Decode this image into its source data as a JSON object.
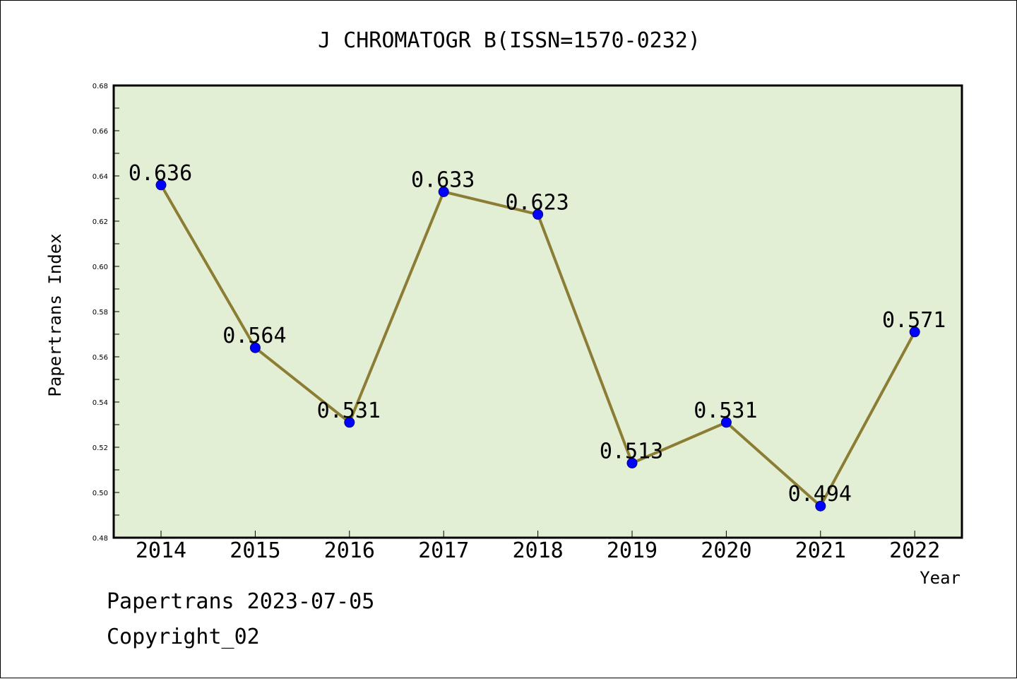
{
  "chart_data": {
    "type": "line",
    "title": "J CHROMATOGR B(ISSN=1570-0232)",
    "xlabel": "Year",
    "ylabel": "Papertrans Index",
    "categories": [
      "2014",
      "2015",
      "2016",
      "2017",
      "2018",
      "2019",
      "2020",
      "2021",
      "2022"
    ],
    "series": [
      {
        "values": [
          0.636,
          0.564,
          0.531,
          0.633,
          0.623,
          0.513,
          0.531,
          0.494,
          0.571
        ]
      }
    ],
    "data_labels": [
      "0.636",
      "0.564",
      "0.531",
      "0.633",
      "0.623",
      "0.513",
      "0.531",
      "0.494",
      "0.571"
    ],
    "ylim": [
      0.48,
      0.68
    ],
    "yticks": [
      "0.48",
      "0.50",
      "0.52",
      "0.54",
      "0.56",
      "0.58",
      "0.60",
      "0.62",
      "0.64",
      "0.66",
      "0.68"
    ],
    "grid": false,
    "legend": "none",
    "colors": {
      "plot_background": "#e2efd5",
      "line": "#8c7d35",
      "marker": "#0000ff"
    }
  },
  "footer": {
    "source": "Papertrans 2023-07-05",
    "copyright": "Copyright_02"
  }
}
